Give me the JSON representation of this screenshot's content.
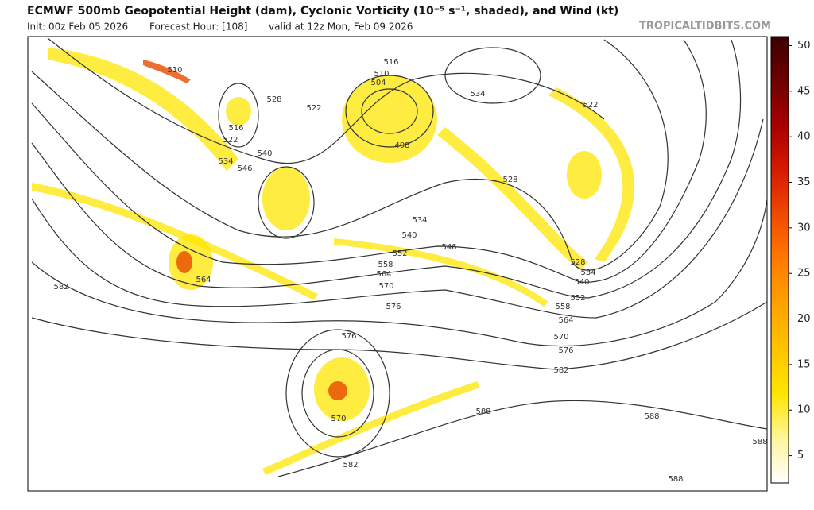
{
  "header": {
    "title": "ECMWF 500mb Geopotential Height (dam), Cyclonic Vorticity (10⁻⁵ s⁻¹, shaded), and Wind (kt)",
    "init": "Init: 00z Feb 05 2026",
    "forecast_hour": "Forecast Hour: [108]",
    "valid": "valid at 12z Mon, Feb 09 2026",
    "site": "TROPICALTIDBITS.COM"
  },
  "map": {
    "contour_labels": [
      "510",
      "516",
      "510",
      "504",
      "534",
      "522",
      "528",
      "522",
      "516",
      "522",
      "534",
      "546",
      "540",
      "498",
      "528",
      "534",
      "540",
      "546",
      "552",
      "558",
      "564",
      "570",
      "576",
      "528",
      "534",
      "540",
      "552",
      "558",
      "564",
      "570",
      "576",
      "582",
      "564",
      "582",
      "576",
      "570",
      "582",
      "588",
      "588",
      "588",
      "588"
    ]
  },
  "colorbar": {
    "lim": [
      2,
      51
    ],
    "ticks": [
      5,
      10,
      15,
      20,
      25,
      30,
      35,
      40,
      45,
      50
    ],
    "colors": [
      "#ffffff",
      "#fff59a",
      "#ffe500",
      "#ffc400",
      "#ffa200",
      "#ff7a00",
      "#f04a00",
      "#d61a00",
      "#a80000",
      "#6e0000",
      "#3c0000"
    ]
  }
}
